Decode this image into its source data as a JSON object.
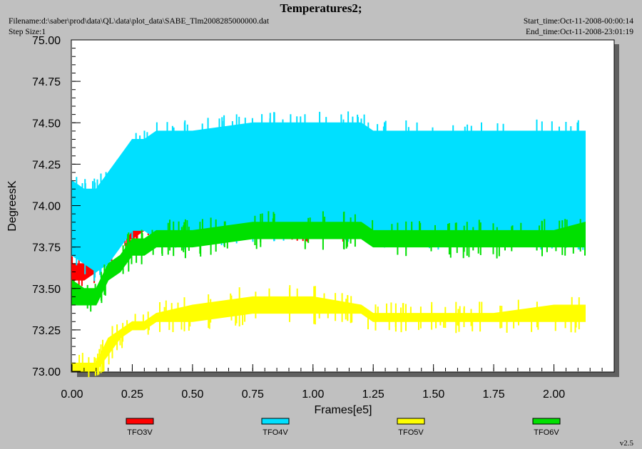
{
  "header": {
    "title": "Temperatures2;",
    "filename": "Filename:d:\\saber\\prod\\data\\QL\\data\\plot_data\\SABE_Tlm2008285000000.dat",
    "step_size": "Step Size:1",
    "start_time": "Start_time:Oct-11-2008-00:00:14",
    "end_time": "End_time:Oct-11-2008-23:01:19",
    "version": "v2.5"
  },
  "colors": {
    "TFO3V": "#ff0000",
    "TFO4V": "#00e0ff",
    "TFO5V": "#ffff00",
    "TFO6V": "#00e000"
  },
  "chart_data": {
    "type": "line",
    "title": "Temperatures2;",
    "xlabel": "Frames[e5]",
    "ylabel": "DegreesK",
    "xlim": [
      0,
      2.25
    ],
    "ylim": [
      73.0,
      75.0
    ],
    "x_ticks": [
      "0.00",
      "0.25",
      "0.50",
      "0.75",
      "1.00",
      "1.25",
      "1.50",
      "1.75",
      "2.00"
    ],
    "y_ticks": [
      "73.00",
      "73.25",
      "73.50",
      "73.75",
      "74.00",
      "74.25",
      "74.50",
      "74.75",
      "75.00"
    ],
    "legend_position": "bottom",
    "x": [
      0.0,
      0.05,
      0.1,
      0.15,
      0.2,
      0.25,
      0.3,
      0.35,
      0.5,
      0.75,
      1.0,
      1.2,
      1.25,
      1.5,
      1.75,
      2.0,
      2.13
    ],
    "series": [
      {
        "name": "TFO3V",
        "color": "#ff0000",
        "low": [
          73.55,
          73.55,
          73.6,
          73.7,
          73.8,
          73.8,
          73.85,
          73.85,
          73.85,
          73.85,
          73.85,
          73.85,
          73.85,
          73.85,
          73.85,
          73.85,
          73.85
        ],
        "high": [
          73.65,
          73.65,
          73.7,
          73.8,
          73.85,
          73.9,
          73.95,
          74.0,
          74.05,
          74.1,
          74.1,
          74.05,
          74.05,
          74.05,
          74.05,
          74.05,
          74.05
        ]
      },
      {
        "name": "TFO4V",
        "color": "#00e0ff",
        "low": [
          73.7,
          73.65,
          73.6,
          73.65,
          73.75,
          73.85,
          73.85,
          73.8,
          73.8,
          73.85,
          73.85,
          73.85,
          73.8,
          73.8,
          73.8,
          73.8,
          73.8
        ],
        "high": [
          74.15,
          74.1,
          74.1,
          74.2,
          74.3,
          74.4,
          74.4,
          74.45,
          74.45,
          74.5,
          74.5,
          74.5,
          74.45,
          74.45,
          74.45,
          74.45,
          74.45
        ]
      },
      {
        "name": "TFO5V",
        "color": "#ffff00",
        "low": [
          73.0,
          73.0,
          73.0,
          73.1,
          73.2,
          73.25,
          73.25,
          73.3,
          73.3,
          73.35,
          73.35,
          73.35,
          73.3,
          73.3,
          73.3,
          73.3,
          73.3
        ],
        "high": [
          73.05,
          73.05,
          73.05,
          73.2,
          73.25,
          73.3,
          73.3,
          73.35,
          73.4,
          73.45,
          73.45,
          73.4,
          73.35,
          73.35,
          73.35,
          73.4,
          73.4
        ]
      },
      {
        "name": "TFO6V",
        "color": "#00e000",
        "low": [
          73.4,
          73.4,
          73.4,
          73.55,
          73.6,
          73.7,
          73.7,
          73.75,
          73.75,
          73.8,
          73.8,
          73.8,
          73.75,
          73.75,
          73.75,
          73.75,
          73.75
        ],
        "high": [
          73.55,
          73.5,
          73.5,
          73.65,
          73.7,
          73.8,
          73.8,
          73.85,
          73.85,
          73.9,
          73.9,
          73.9,
          73.85,
          73.85,
          73.85,
          73.85,
          73.9
        ]
      }
    ]
  }
}
